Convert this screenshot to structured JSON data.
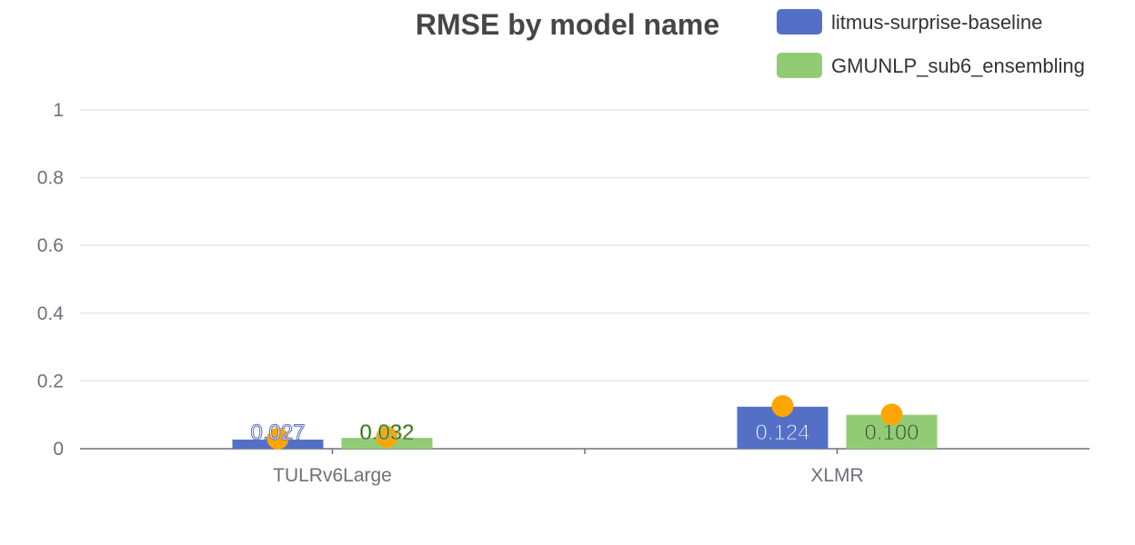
{
  "chart_data": {
    "type": "bar",
    "title": "RMSE by model name",
    "xlabel": "",
    "ylabel": "",
    "categories": [
      "TULRv6Large",
      "XLMR"
    ],
    "series": [
      {
        "name": "litmus-surprise-baseline",
        "color": "#5470c6",
        "label_color": "#ffffff",
        "values": [
          0.027,
          0.124
        ],
        "labels": [
          "0.027",
          "0.124"
        ]
      },
      {
        "name": "GMUNLP_sub6_ensembling",
        "color": "#91cc75",
        "label_color": "#333333",
        "values": [
          0.032,
          0.1
        ],
        "labels": [
          "0.032",
          "0.100"
        ]
      }
    ],
    "markers": {
      "color": "#ffa500",
      "values": [
        [
          0.03,
          0.126
        ],
        [
          0.035,
          0.101
        ]
      ]
    },
    "ylim": [
      0,
      1
    ],
    "yticks": [
      "0",
      "0.2",
      "0.4",
      "0.6",
      "0.8",
      "1"
    ],
    "grid": true,
    "legend_position": "top-right"
  }
}
